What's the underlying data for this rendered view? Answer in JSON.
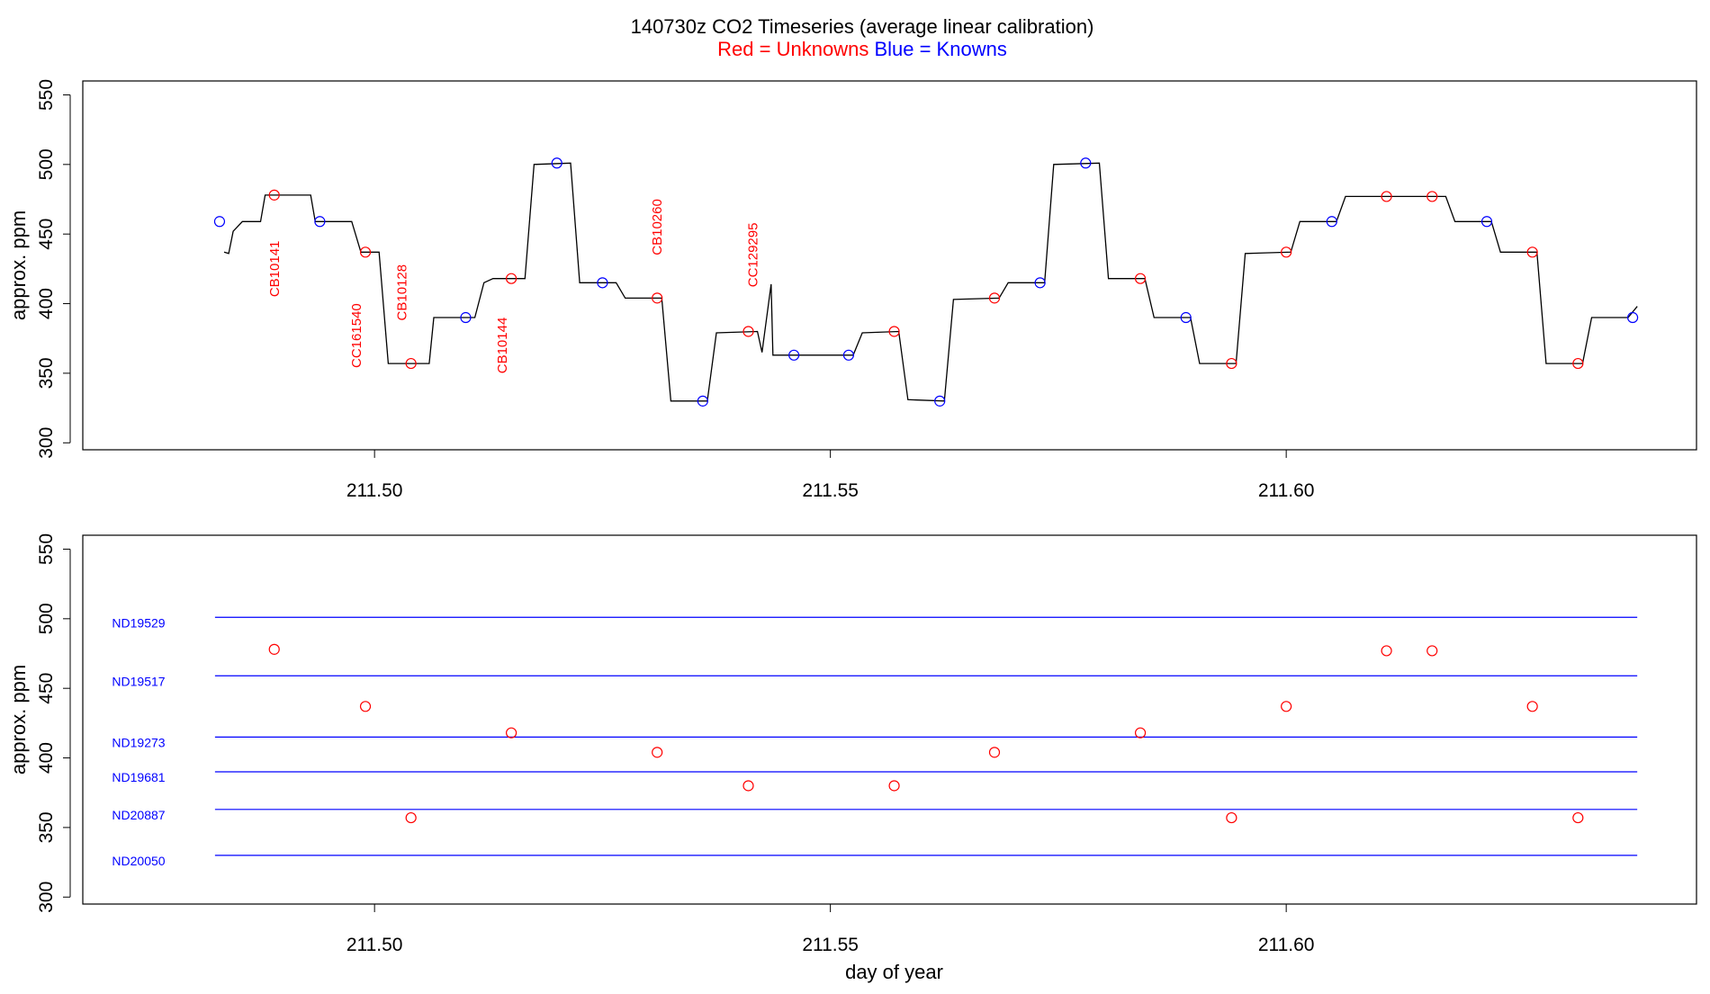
{
  "header": {
    "title": "140730z   CO2 Timeseries (average linear calibration)",
    "legend_red": "Red = Unknowns",
    "legend_blue": "Blue = Knowns"
  },
  "colors": {
    "red": "#ff0000",
    "blue": "#0000ff",
    "trace": "#000000",
    "frame": "#000000"
  },
  "chart_data": [
    {
      "type": "line",
      "panel": "top",
      "title": "",
      "xlabel": "",
      "ylabel": "approx. ppm",
      "xlim": [
        211.468,
        211.645
      ],
      "ylim": [
        295,
        560
      ],
      "xticks": [
        211.5,
        211.55,
        211.6
      ],
      "xtick_labels": [
        "211.50",
        "211.55",
        "211.60"
      ],
      "yticks": [
        300,
        350,
        400,
        450,
        500,
        550
      ],
      "ytick_labels": [
        "300",
        "350",
        "400",
        "450",
        "500",
        "550"
      ],
      "grid": false,
      "trace": [
        [
          211.4835,
          437
        ],
        [
          211.484,
          436
        ],
        [
          211.4845,
          452
        ],
        [
          211.4855,
          459
        ],
        [
          211.4875,
          459
        ],
        [
          211.488,
          478
        ],
        [
          211.493,
          478
        ],
        [
          211.4935,
          459
        ],
        [
          211.4975,
          459
        ],
        [
          211.4985,
          437
        ],
        [
          211.5005,
          437
        ],
        [
          211.5015,
          357
        ],
        [
          211.506,
          357
        ],
        [
          211.5065,
          390
        ],
        [
          211.511,
          390
        ],
        [
          211.512,
          415
        ],
        [
          211.513,
          418
        ],
        [
          211.5165,
          418
        ],
        [
          211.5175,
          500
        ],
        [
          211.5215,
          501
        ],
        [
          211.5225,
          415
        ],
        [
          211.5265,
          415
        ],
        [
          211.5275,
          404
        ],
        [
          211.5315,
          404
        ],
        [
          211.5325,
          330
        ],
        [
          211.5365,
          330
        ],
        [
          211.5375,
          379
        ],
        [
          211.542,
          380
        ],
        [
          211.5425,
          365
        ],
        [
          211.5435,
          414
        ],
        [
          211.5437,
          363
        ],
        [
          211.5525,
          363
        ],
        [
          211.5535,
          379
        ],
        [
          211.5575,
          380
        ],
        [
          211.5585,
          331
        ],
        [
          211.5625,
          330
        ],
        [
          211.5635,
          403
        ],
        [
          211.5685,
          404
        ],
        [
          211.5695,
          415
        ],
        [
          211.5735,
          415
        ],
        [
          211.5745,
          500
        ],
        [
          211.5795,
          501
        ],
        [
          211.5805,
          418
        ],
        [
          211.5845,
          418
        ],
        [
          211.5855,
          390
        ],
        [
          211.5895,
          390
        ],
        [
          211.5905,
          357
        ],
        [
          211.5945,
          357
        ],
        [
          211.5955,
          436
        ],
        [
          211.6005,
          437
        ],
        [
          211.6015,
          459
        ],
        [
          211.6055,
          459
        ],
        [
          211.6065,
          477
        ],
        [
          211.6175,
          477
        ],
        [
          211.6185,
          459
        ],
        [
          211.6225,
          459
        ],
        [
          211.6235,
          437
        ],
        [
          211.6275,
          437
        ],
        [
          211.6285,
          357
        ],
        [
          211.6325,
          357
        ],
        [
          211.6335,
          390
        ],
        [
          211.6375,
          390
        ],
        [
          211.6385,
          398
        ]
      ],
      "unknowns": [
        [
          211.489,
          478
        ],
        [
          211.499,
          437
        ],
        [
          211.504,
          357
        ],
        [
          211.515,
          418
        ],
        [
          211.531,
          404
        ],
        [
          211.541,
          380
        ],
        [
          211.557,
          380
        ],
        [
          211.568,
          404
        ],
        [
          211.584,
          418
        ],
        [
          211.594,
          357
        ],
        [
          211.6,
          437
        ],
        [
          211.611,
          477
        ],
        [
          211.616,
          477
        ],
        [
          211.627,
          437
        ],
        [
          211.632,
          357
        ]
      ],
      "knowns": [
        [
          211.483,
          459
        ],
        [
          211.494,
          459
        ],
        [
          211.51,
          390
        ],
        [
          211.52,
          501
        ],
        [
          211.525,
          415
        ],
        [
          211.536,
          330
        ],
        [
          211.546,
          363
        ],
        [
          211.552,
          363
        ],
        [
          211.562,
          330
        ],
        [
          211.573,
          415
        ],
        [
          211.578,
          501
        ],
        [
          211.589,
          390
        ],
        [
          211.605,
          459
        ],
        [
          211.622,
          459
        ],
        [
          211.638,
          390
        ]
      ],
      "annotations": [
        {
          "text": "CB10141",
          "x": 211.4895,
          "y": 425
        },
        {
          "text": "CC161540",
          "x": 211.4985,
          "y": 377
        },
        {
          "text": "CB10128",
          "x": 211.5035,
          "y": 408
        },
        {
          "text": "CB10144",
          "x": 211.5145,
          "y": 370
        },
        {
          "text": "CB10260",
          "x": 211.5315,
          "y": 455
        },
        {
          "text": "CC129295",
          "x": 211.542,
          "y": 435
        }
      ]
    },
    {
      "type": "scatter",
      "panel": "bottom",
      "title": "",
      "xlabel": "day of year",
      "ylabel": "approx. ppm",
      "xlim": [
        211.468,
        211.645
      ],
      "ylim": [
        295,
        560
      ],
      "xticks": [
        211.5,
        211.55,
        211.6
      ],
      "xtick_labels": [
        "211.50",
        "211.55",
        "211.60"
      ],
      "yticks": [
        300,
        350,
        400,
        450,
        500,
        550
      ],
      "ytick_labels": [
        "300",
        "350",
        "400",
        "450",
        "500",
        "550"
      ],
      "grid": false,
      "reference_lines": [
        {
          "name": "ND19529",
          "y": 501
        },
        {
          "name": "ND19517",
          "y": 459
        },
        {
          "name": "ND19273",
          "y": 415
        },
        {
          "name": "ND19681",
          "y": 390
        },
        {
          "name": "ND20887",
          "y": 363
        },
        {
          "name": "ND20050",
          "y": 330
        }
      ],
      "line_x_range": [
        211.4825,
        211.6385
      ],
      "unknowns": [
        [
          211.489,
          478
        ],
        [
          211.499,
          437
        ],
        [
          211.504,
          357
        ],
        [
          211.515,
          418
        ],
        [
          211.531,
          404
        ],
        [
          211.541,
          380
        ],
        [
          211.557,
          380
        ],
        [
          211.568,
          404
        ],
        [
          211.584,
          418
        ],
        [
          211.594,
          357
        ],
        [
          211.6,
          437
        ],
        [
          211.611,
          477
        ],
        [
          211.616,
          477
        ],
        [
          211.627,
          437
        ],
        [
          211.632,
          357
        ]
      ]
    }
  ]
}
